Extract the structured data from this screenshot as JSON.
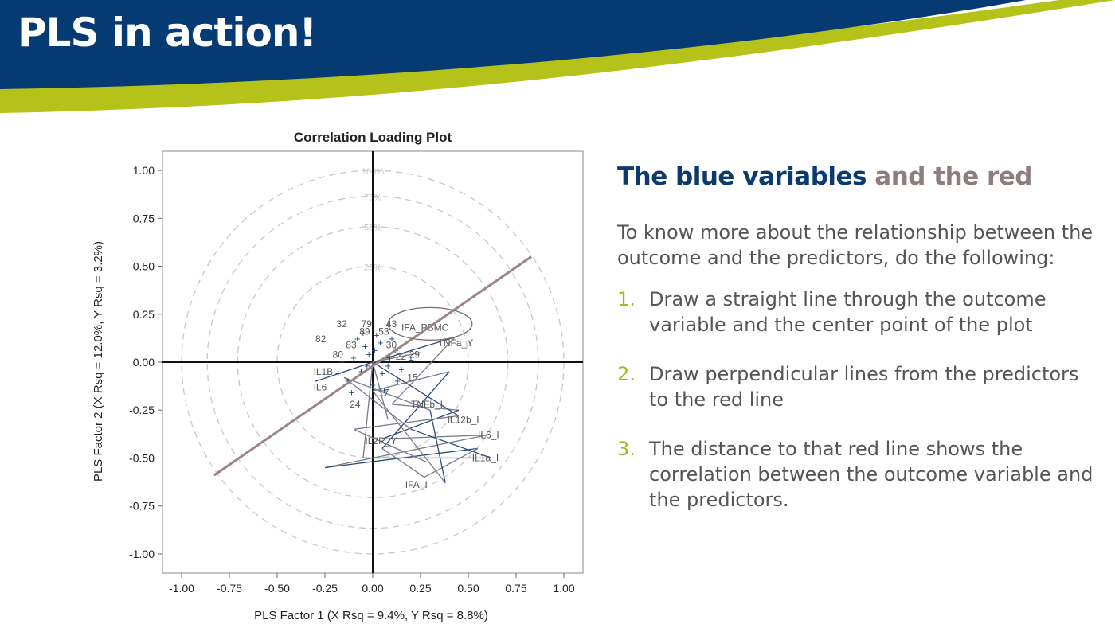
{
  "slide": {
    "title": "PLS in action!",
    "colors": {
      "banner": "#053a73",
      "accent": "#b5c21a",
      "red_line": "#9c8585",
      "variable_blue": "#2a4a7a"
    }
  },
  "right_panel": {
    "heading_blue": "The blue variables",
    "heading_red": " and the red",
    "intro": "To know more about the relationship between the outcome and the predictors, do the following:",
    "steps": [
      {
        "number": "1.",
        "text": "Draw a straight line through the outcome variable and the center point of the plot"
      },
      {
        "number": "2.",
        "text": "Draw perpendicular lines from the predictors to the red line"
      },
      {
        "number": "3.",
        "text": "The distance to that red line shows the correlation between the outcome variable and the predictors."
      }
    ]
  },
  "chart_data": {
    "type": "scatter",
    "title": "Correlation Loading Plot",
    "xlabel": "PLS Factor 1 (X Rsq = 9.4%, Y Rsq = 8.8%)",
    "ylabel": "PLS Factor 2 (X Rsq = 12.0%, Y Rsq = 3.2%)",
    "xlim": [
      -1.1,
      1.1
    ],
    "ylim": [
      -1.1,
      1.1
    ],
    "xticks": [
      -1.0,
      -0.75,
      -0.5,
      -0.25,
      0.0,
      0.25,
      0.5,
      0.75,
      1.0
    ],
    "xtick_labels": [
      "-1.00",
      "-0.75",
      "-0.50",
      "-0.25",
      "0.00",
      "0.25",
      "0.50",
      "0.75",
      "1.00"
    ],
    "yticks": [
      1.0,
      0.75,
      0.5,
      0.25,
      0.0,
      -0.25,
      -0.5,
      -0.75,
      -1.0
    ],
    "ytick_labels": [
      "1.00",
      "0.75",
      "0.50",
      "0.25",
      "0.00",
      "-0.25",
      "-0.50",
      "-0.75",
      "-1.00"
    ],
    "circles": [
      {
        "r": 1.0,
        "label": "100%"
      },
      {
        "r": 0.866,
        "label": "75%"
      },
      {
        "r": 0.707,
        "label": "50%"
      },
      {
        "r": 0.5,
        "label": "25%"
      }
    ],
    "outcome_line": {
      "from": [
        -0.83,
        -0.59
      ],
      "to": [
        0.83,
        0.55
      ]
    },
    "outcome_ellipse": {
      "cx": 0.3,
      "cy": 0.2,
      "rx": 0.22,
      "ry": 0.085
    },
    "labeled_points": [
      {
        "label": "IFA_PBMC",
        "x": 0.15,
        "y": 0.18
      },
      {
        "label": "TNFa_Y",
        "x": 0.34,
        "y": 0.1
      },
      {
        "label": "TNFb_I",
        "x": 0.2,
        "y": -0.22
      },
      {
        "label": "IL12b_I",
        "x": 0.39,
        "y": -0.3
      },
      {
        "label": "IL6_I",
        "x": 0.55,
        "y": -0.38
      },
      {
        "label": "IL1a_I",
        "x": 0.52,
        "y": -0.5
      },
      {
        "label": "IL2R_Y",
        "x": -0.04,
        "y": -0.41
      },
      {
        "label": "IFA_I",
        "x": 0.17,
        "y": -0.64
      },
      {
        "label": "32",
        "x": -0.19,
        "y": 0.2
      },
      {
        "label": "82",
        "x": -0.3,
        "y": 0.12
      },
      {
        "label": "79",
        "x": -0.06,
        "y": 0.2
      },
      {
        "label": "43",
        "x": 0.07,
        "y": 0.2
      },
      {
        "label": "53",
        "x": 0.03,
        "y": 0.16
      },
      {
        "label": "89",
        "x": -0.07,
        "y": 0.16
      },
      {
        "label": "83",
        "x": -0.14,
        "y": 0.09
      },
      {
        "label": "80",
        "x": -0.21,
        "y": 0.04
      },
      {
        "label": "30",
        "x": 0.07,
        "y": 0.09
      },
      {
        "label": "29",
        "x": 0.19,
        "y": 0.04
      },
      {
        "label": "22",
        "x": 0.12,
        "y": 0.03
      },
      {
        "label": "IL1B",
        "x": -0.31,
        "y": -0.05
      },
      {
        "label": "IL6",
        "x": -0.31,
        "y": -0.13
      },
      {
        "label": "24",
        "x": -0.12,
        "y": -0.22
      },
      {
        "label": "17",
        "x": 0.03,
        "y": -0.16
      },
      {
        "label": "15",
        "x": 0.18,
        "y": -0.08
      }
    ],
    "cluster_points": [
      [
        -0.02,
        0.04
      ],
      [
        0.04,
        0.1
      ],
      [
        -0.06,
        -0.05
      ],
      [
        0.08,
        -0.02
      ],
      [
        -0.1,
        0.02
      ],
      [
        0.12,
        0.06
      ],
      [
        0.0,
        -0.12
      ],
      [
        -0.13,
        -0.1
      ],
      [
        0.06,
        -0.15
      ],
      [
        0.02,
        0.14
      ],
      [
        -0.04,
        0.08
      ],
      [
        0.15,
        -0.04
      ],
      [
        -0.08,
        0.12
      ],
      [
        0.1,
        0.12
      ],
      [
        -0.16,
        0.0
      ],
      [
        0.05,
        -0.06
      ],
      [
        -0.03,
        -0.02
      ],
      [
        0.09,
        0.02
      ],
      [
        -0.11,
        -0.16
      ],
      [
        0.01,
        0.06
      ],
      [
        0.13,
        -0.1
      ],
      [
        -0.05,
        0.15
      ],
      [
        0.2,
        0.01
      ],
      [
        -0.18,
        -0.06
      ]
    ],
    "connector_segments": [
      [
        [
          0.0,
          0.0
        ],
        [
          0.43,
          0.13
        ]
      ],
      [
        [
          0.43,
          0.13
        ],
        [
          0.1,
          -0.22
        ]
      ],
      [
        [
          0.1,
          -0.22
        ],
        [
          0.45,
          -0.25
        ]
      ],
      [
        [
          0.45,
          -0.25
        ],
        [
          0.05,
          -0.4
        ]
      ],
      [
        [
          0.05,
          -0.4
        ],
        [
          0.6,
          -0.38
        ]
      ],
      [
        [
          0.6,
          -0.38
        ],
        [
          -0.25,
          -0.55
        ]
      ],
      [
        [
          -0.25,
          -0.55
        ],
        [
          0.55,
          -0.45
        ]
      ],
      [
        [
          0.55,
          -0.45
        ],
        [
          0.27,
          -0.6
        ]
      ],
      [
        [
          0.27,
          -0.6
        ],
        [
          0.05,
          -0.45
        ]
      ],
      [
        [
          0.05,
          -0.45
        ],
        [
          0.4,
          -0.05
        ]
      ],
      [
        [
          0.4,
          -0.05
        ],
        [
          0.0,
          -0.15
        ]
      ],
      [
        [
          0.0,
          -0.15
        ],
        [
          0.38,
          -0.63
        ]
      ],
      [
        [
          0.38,
          -0.63
        ],
        [
          0.3,
          -0.25
        ]
      ],
      [
        [
          0.3,
          -0.25
        ],
        [
          -0.15,
          -0.08
        ]
      ],
      [
        [
          -0.15,
          -0.08
        ],
        [
          0.2,
          -0.35
        ]
      ],
      [
        [
          0.2,
          -0.35
        ],
        [
          0.62,
          -0.5
        ]
      ],
      [
        [
          0.62,
          -0.5
        ],
        [
          -0.05,
          -0.5
        ]
      ],
      [
        [
          -0.05,
          -0.5
        ],
        [
          0.0,
          0.0
        ]
      ],
      [
        [
          0.0,
          0.0
        ],
        [
          0.45,
          -0.28
        ]
      ],
      [
        [
          0.45,
          -0.28
        ],
        [
          -0.1,
          -0.35
        ]
      ],
      [
        [
          -0.1,
          -0.35
        ],
        [
          0.28,
          -0.52
        ]
      ],
      [
        [
          0.0,
          0.0
        ],
        [
          -0.3,
          -0.1
        ]
      ],
      [
        [
          0.0,
          0.0
        ],
        [
          0.25,
          0.05
        ]
      ],
      [
        [
          0.0,
          0.0
        ],
        [
          0.08,
          -0.3
        ]
      ]
    ]
  }
}
